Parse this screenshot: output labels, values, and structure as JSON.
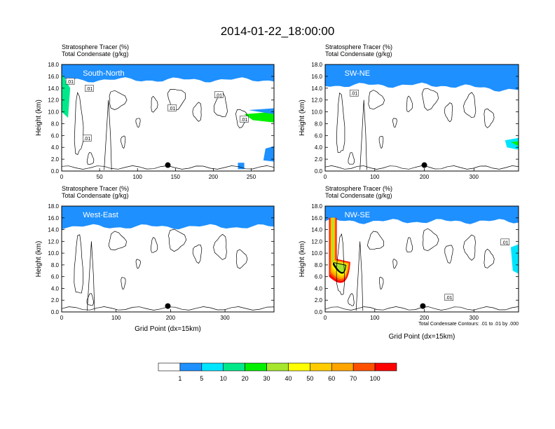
{
  "title": "2014-01-22_18:00:00",
  "colors": {
    "levels": [
      "#ffffff",
      "#1e90ff",
      "#00e5ff",
      "#00e88a",
      "#00f000",
      "#a6e62e",
      "#ffff00",
      "#ffcc00",
      "#ffa500",
      "#ff5000",
      "#ff0000"
    ],
    "contour": "#000000",
    "marker": "#000000"
  },
  "chart_data": [
    {
      "type": "heatmap",
      "panel_label": "South-North",
      "header_line1": "Stratosphere Tracer   (%)",
      "header_line2": "Total Condensate   (g/kg)",
      "xlabel": "",
      "ylabel": "Height (km)",
      "xlim": [
        0,
        280
      ],
      "ylim": [
        0,
        18
      ],
      "xticks": [
        "0",
        "50",
        "100",
        "150",
        "200",
        "250"
      ],
      "yticks": [
        "0.0",
        "2.0",
        "4.0",
        "6.0",
        "8.0",
        "10.0",
        "12.0",
        "14.0",
        "16.0",
        "18.0"
      ],
      "tracer_base_km": 15.5,
      "tracer_top_km": 18,
      "contour_labels": [
        ".01",
        ".01",
        ".01",
        ".01",
        ".01",
        ".01"
      ],
      "marker_grid_point": 140,
      "marker_height_km": 1.0
    },
    {
      "type": "heatmap",
      "panel_label": "SW-NE",
      "header_line1": "Stratosphere Tracer   (%)",
      "header_line2": "Total Condensate   (g/kg)",
      "xlabel": "",
      "ylabel": "Height (km)",
      "xlim": [
        0,
        390
      ],
      "ylim": [
        0,
        18
      ],
      "xticks": [
        "0",
        "100",
        "200",
        "300"
      ],
      "yticks": [
        "0.0",
        "2.0",
        "4.0",
        "6.0",
        "8.0",
        "10.0",
        "12.0",
        "14.0",
        "16.0",
        "18.0"
      ],
      "tracer_base_km": 14.5,
      "tracer_top_km": 18,
      "contour_labels": [
        ".01"
      ],
      "marker_grid_point": 200,
      "marker_height_km": 1.0
    },
    {
      "type": "heatmap",
      "panel_label": "West-East",
      "header_line1": "Stratosphere Tracer   (%)",
      "header_line2": "Total Condensate   (g/kg)",
      "xlabel": "Grid Point (dx=15km)",
      "ylabel": "Height (km)",
      "xlim": [
        0,
        390
      ],
      "ylim": [
        0,
        18
      ],
      "xticks": [
        "0",
        "100",
        "200",
        "300"
      ],
      "yticks": [
        "0.0",
        "2.0",
        "4.0",
        "6.0",
        "8.0",
        "10.0",
        "12.0",
        "14.0",
        "16.0",
        "18.0"
      ],
      "tracer_base_km": 14.5,
      "tracer_top_km": 18,
      "contour_labels": [],
      "marker_grid_point": 195,
      "marker_height_km": 1.0
    },
    {
      "type": "heatmap",
      "panel_label": "NW-SE",
      "header_line1": "Stratosphere Tracer   (%)",
      "header_line2": "Total Condensate   (g/kg)",
      "xlabel": "Grid Point (dx=15km)",
      "ylabel": "Height (km)",
      "xlim": [
        0,
        390
      ],
      "ylim": [
        0,
        18
      ],
      "xticks": [
        "0",
        "100",
        "200",
        "300"
      ],
      "yticks": [
        "0.0",
        "2.0",
        "4.0",
        "6.0",
        "8.0",
        "10.0",
        "12.0",
        "14.0",
        "16.0",
        "18.0"
      ],
      "tracer_base_km": 15.5,
      "tracer_top_km": 18,
      "contour_labels": [
        ".01",
        ".01"
      ],
      "marker_grid_point": 197,
      "marker_height_km": 1.0,
      "footnote": "Total Condensate Contours: .01 to .01 by .000"
    }
  ],
  "colorbar": {
    "labels": [
      "1",
      "5",
      "10",
      "20",
      "30",
      "40",
      "50",
      "60",
      "70",
      "100"
    ]
  }
}
